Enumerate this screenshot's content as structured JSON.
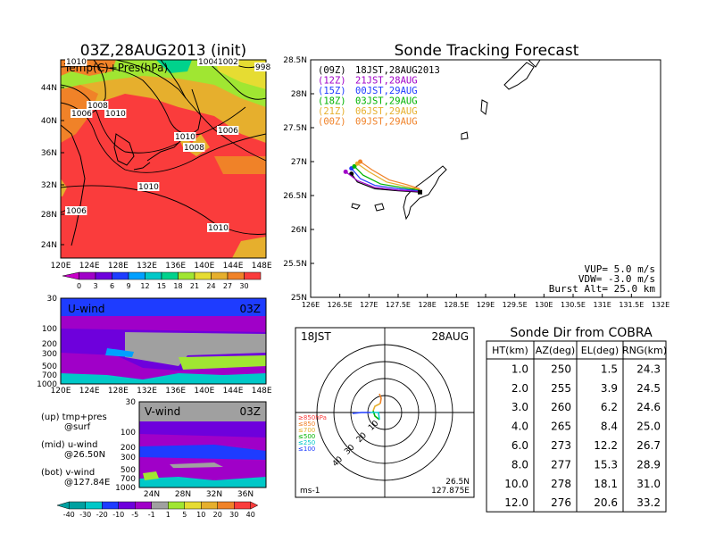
{
  "left": {
    "title": "03Z,28AUG2013 (init)",
    "panel_label": "Temp(C)+Pres(hPa)",
    "lat_ticks": [
      "44N",
      "40N",
      "36N",
      "32N",
      "28N",
      "24N"
    ],
    "lon_ticks": [
      "120E",
      "124E",
      "128E",
      "132E",
      "136E",
      "140E",
      "144E",
      "148E"
    ],
    "contour_labels": [
      "1010",
      "1004",
      "1002",
      "998",
      "1008",
      "1006",
      "1010",
      "1010",
      "1008",
      "1006",
      "1010",
      "1006",
      "1010"
    ],
    "temp_colorbar": [
      "0",
      "3",
      "6",
      "9",
      "12",
      "15",
      "18",
      "21",
      "24",
      "27",
      "30"
    ],
    "temp_colors": [
      "#a000c8",
      "#6e00dc",
      "#1e3cff",
      "#00a0ff",
      "#00c8c8",
      "#00d28c",
      "#a0e632",
      "#e6dc32",
      "#e6af2d",
      "#f08228",
      "#fa3c3c"
    ]
  },
  "uwind": {
    "label": "U-wind",
    "time": "03Z",
    "y_ticks": [
      "30",
      "100",
      "200",
      "300",
      "500",
      "700",
      "1000"
    ],
    "x_ticks": [
      "120E",
      "124E",
      "128E",
      "132E",
      "136E",
      "140E",
      "144E",
      "148E"
    ]
  },
  "vwind": {
    "label": "V-wind",
    "time": "03Z",
    "y_ticks": [
      "30",
      "100",
      "200",
      "300",
      "500",
      "700",
      "1000"
    ],
    "x_ticks": [
      "24N",
      "28N",
      "32N",
      "36N"
    ]
  },
  "legend_notes": {
    "line1": "(up) tmp+pres",
    "line1b": "@surf",
    "line2": "(mid) u-wind",
    "line2b": "@26.50N",
    "line3": "(bot) v-wind",
    "line3b": "@127.84E"
  },
  "wind_colorbar": {
    "labels": [
      "-40",
      "-30",
      "-20",
      "-10",
      "-5",
      "-1",
      "1",
      "5",
      "10",
      "20",
      "30",
      "40"
    ],
    "colors": [
      "#00a0a0",
      "#00c8c8",
      "#1e3cff",
      "#6e00dc",
      "#a000c8",
      "#a0a0a0",
      "#a0e632",
      "#e6dc32",
      "#e6af2d",
      "#f08228",
      "#fa3c3c"
    ]
  },
  "tracking": {
    "title": "Sonde Tracking Forecast",
    "lat_ticks": [
      "28.5N",
      "28N",
      "27.5N",
      "27N",
      "26.5N",
      "26N",
      "25.5N",
      "25N"
    ],
    "lon_ticks": [
      "126E",
      "126.5E",
      "127E",
      "127.5E",
      "128E",
      "128.5E",
      "129E",
      "129.5E",
      "130E",
      "130.5E",
      "131E",
      "131.5E",
      "132E"
    ],
    "legend": [
      {
        "code": "(09Z)",
        "label": "18JST,28AUG2013",
        "color": "#000000"
      },
      {
        "code": "(12Z)",
        "label": "21JST,28AUG",
        "color": "#a000c8"
      },
      {
        "code": "(15Z)",
        "label": "00JST,29AUG",
        "color": "#1e3cff"
      },
      {
        "code": "(18Z)",
        "label": "03JST,29AUG",
        "color": "#00b400"
      },
      {
        "code": "(21Z)",
        "label": "06JST,29AUG",
        "color": "#e6af2d"
      },
      {
        "code": "(00Z)",
        "label": "09JST,29AUG",
        "color": "#f08228"
      }
    ],
    "params": {
      "vup": "VUP= 5.0 m/s",
      "vdw": "VDW= -3.0 m/s",
      "burst": "Burst Alt= 25.0 km"
    }
  },
  "hodo": {
    "time": "18JST",
    "date": "28AUG",
    "legend": [
      {
        "text": "≥850hPa",
        "color": "#fa3c3c"
      },
      {
        "text": "≤850",
        "color": "#f08228"
      },
      {
        "text": "≤700",
        "color": "#e6af2d"
      },
      {
        "text": "≤500",
        "color": "#00b400"
      },
      {
        "text": "≤250",
        "color": "#00c8c8"
      },
      {
        "text": "≤100",
        "color": "#1e3cff"
      }
    ],
    "ring_labels": [
      "10",
      "20",
      "30",
      "40"
    ],
    "unit": "ms-1",
    "loc1": "26.5N",
    "loc2": "127.875E"
  },
  "sonde_table": {
    "title": "Sonde Dir from COBRA",
    "headers": [
      "HT(km)",
      "AZ(deg)",
      "EL(deg)",
      "RNG(km)"
    ],
    "rows": [
      [
        "1.0",
        "250",
        "1.5",
        "24.3"
      ],
      [
        "2.0",
        "255",
        "3.9",
        "24.5"
      ],
      [
        "3.0",
        "260",
        "6.2",
        "24.6"
      ],
      [
        "4.0",
        "265",
        "8.4",
        "25.0"
      ],
      [
        "6.0",
        "273",
        "12.2",
        "26.7"
      ],
      [
        "8.0",
        "277",
        "15.3",
        "28.9"
      ],
      [
        "10.0",
        "278",
        "18.1",
        "31.0"
      ],
      [
        "12.0",
        "276",
        "20.6",
        "33.2"
      ]
    ]
  },
  "chart_data": [
    {
      "type": "heatmap",
      "title": "03Z,28AUG2013 (init)",
      "subtitle": "Temp(C)+Pres(hPa)",
      "xlabel": "",
      "ylabel": "",
      "x_range": [
        "120E",
        "148E"
      ],
      "y_range": [
        "22N",
        "48N"
      ],
      "colorbar": [
        0,
        3,
        6,
        9,
        12,
        15,
        18,
        21,
        24,
        27,
        30
      ]
    },
    {
      "type": "line",
      "title": "Sonde Tracking Forecast",
      "xlim": [
        126,
        132
      ],
      "ylim": [
        25,
        28.5
      ],
      "series": [
        {
          "name": "18JST,28AUG2013",
          "x": [
            127.875,
            127.5,
            127.1,
            126.8,
            126.7
          ],
          "y": [
            26.55,
            26.57,
            26.6,
            26.7,
            26.82
          ]
        },
        {
          "name": "21JST,28AUG",
          "x": [
            127.875,
            127.5,
            127.1,
            126.8,
            126.6
          ],
          "y": [
            26.56,
            26.58,
            26.62,
            26.72,
            26.85
          ]
        },
        {
          "name": "00JST,29AUG",
          "x": [
            127.875,
            127.5,
            127.1,
            126.85,
            126.7
          ],
          "y": [
            26.57,
            26.6,
            26.65,
            26.75,
            26.9
          ]
        },
        {
          "name": "03JST,29AUG",
          "x": [
            127.875,
            127.55,
            127.2,
            126.9,
            126.75
          ],
          "y": [
            26.58,
            26.62,
            26.67,
            26.8,
            26.93
          ]
        },
        {
          "name": "06JST,29AUG",
          "x": [
            127.875,
            127.6,
            127.3,
            127.0,
            126.8
          ],
          "y": [
            26.59,
            26.64,
            26.7,
            26.85,
            26.97
          ]
        },
        {
          "name": "09JST,29AUG",
          "x": [
            127.875,
            127.65,
            127.35,
            127.05,
            126.85
          ],
          "y": [
            26.6,
            26.66,
            26.73,
            26.88,
            27.0
          ]
        }
      ]
    },
    {
      "type": "table",
      "title": "Sonde Dir from COBRA",
      "columns": [
        "HT(km)",
        "AZ(deg)",
        "EL(deg)",
        "RNG(km)"
      ],
      "rows": [
        [
          1.0,
          250,
          1.5,
          24.3
        ],
        [
          2.0,
          255,
          3.9,
          24.5
        ],
        [
          3.0,
          260,
          6.2,
          24.6
        ],
        [
          4.0,
          265,
          8.4,
          25.0
        ],
        [
          6.0,
          273,
          12.2,
          26.7
        ],
        [
          8.0,
          277,
          15.3,
          28.9
        ],
        [
          10.0,
          278,
          18.1,
          31.0
        ],
        [
          12.0,
          276,
          20.6,
          33.2
        ]
      ]
    }
  ]
}
